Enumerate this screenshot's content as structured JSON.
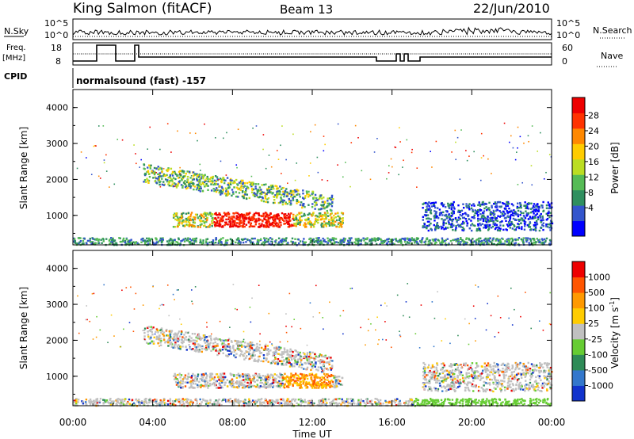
{
  "header": {
    "station": "King Salmon (fitACF)",
    "beam": "Beam 13",
    "date": "22/Jun/2010"
  },
  "status_panels": {
    "nsky_label": "N.Sky",
    "nsky_ticks": [
      "10^5",
      "10^0"
    ],
    "nsearch_label": "N.Search",
    "nsearch_ticks": [
      "10^5",
      "10^0"
    ],
    "freq_label": "Freq.",
    "freq_unit": "[MHz]",
    "freq_ticks": [
      "18",
      "8"
    ],
    "nave_label": "Nave",
    "nave_ticks": [
      "60",
      "0"
    ],
    "cpid_label": "CPID",
    "cpid_value": "normalsound (fast) -157"
  },
  "chart_data": [
    {
      "type": "heatmap",
      "name_printed": "Power",
      "ylabel": "Slant Range [km]",
      "ylim": [
        180,
        4500
      ],
      "yticks": [
        "1000",
        "2000",
        "3000",
        "4000"
      ],
      "xlim": [
        "00:00",
        "24:00"
      ],
      "colorbar_label": "Power [dB]",
      "colorbar_ticks": [
        "28",
        "24",
        "20",
        "16",
        "12",
        "8",
        "4"
      ],
      "colors": [
        "#0000ff",
        "#3355cc",
        "#2f8f5f",
        "#55bb55",
        "#bbdd22",
        "#ffcc00",
        "#ff8800",
        "#ff3300",
        "#ee0000"
      ],
      "echo_regions": [
        {
          "label": "near range",
          "t_start": 0.0,
          "t_end": 24.0,
          "range_km": [
            200,
            400
          ]
        },
        {
          "label": "lower band",
          "t_start": 5.0,
          "t_end": 13.5,
          "range_km": [
            700,
            1100
          ]
        },
        {
          "label": "upper band",
          "t_start": 3.5,
          "t_end": 13.0,
          "range_km": [
            1300,
            2400
          ]
        },
        {
          "label": "late band",
          "t_start": 17.5,
          "t_end": 24.0,
          "range_km": [
            600,
            1400
          ]
        }
      ]
    },
    {
      "type": "heatmap",
      "name_printed": "Velocity",
      "ylabel": "Slant Range [km]",
      "xlabel": "Time UT",
      "ylim": [
        180,
        4500
      ],
      "yticks": [
        "1000",
        "2000",
        "3000",
        "4000"
      ],
      "xticks": [
        "00:00",
        "04:00",
        "08:00",
        "12:00",
        "16:00",
        "20:00",
        "00:00"
      ],
      "colorbar_label": "Velocity [m s",
      "colorbar_label_sup": "-1",
      "colorbar_ticks": [
        "1000",
        "500",
        "100",
        "25",
        "-25",
        "-100",
        "-500",
        "-1000"
      ],
      "colors": [
        "#1133cc",
        "#3377cc",
        "#2e8b57",
        "#66cc33",
        "#c0c0c0",
        "#ffcc00",
        "#ff9900",
        "#ff5500",
        "#ee0000"
      ],
      "echo_regions": [
        {
          "label": "near range",
          "t_start": 0.0,
          "t_end": 24.0,
          "range_km": [
            200,
            400
          ]
        },
        {
          "label": "lower band",
          "t_start": 5.0,
          "t_end": 13.5,
          "range_km": [
            700,
            1100
          ]
        },
        {
          "label": "upper band",
          "t_start": 3.5,
          "t_end": 13.0,
          "range_km": [
            1300,
            2400
          ]
        },
        {
          "label": "late band",
          "t_start": 17.5,
          "t_end": 24.0,
          "range_km": [
            600,
            1400
          ]
        }
      ]
    }
  ]
}
